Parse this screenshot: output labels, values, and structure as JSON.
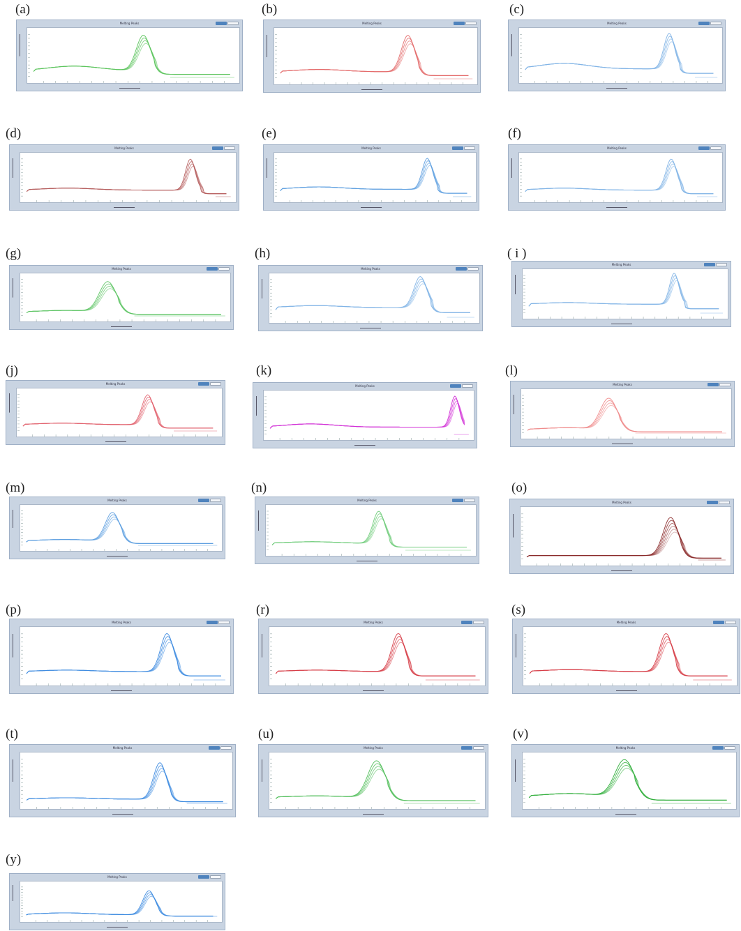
{
  "window_title": "Melting Peaks",
  "chart_data": [
    {
      "label": "(a)",
      "type": "line",
      "color": "#59c35a",
      "peak": 0.55,
      "width": 0.033,
      "baseline": 0.18,
      "left_hump": 0.1,
      "replicates": 4,
      "xlabel": "",
      "ylabel": ""
    },
    {
      "label": "(b)",
      "type": "line",
      "color": "#e36a6a",
      "peak": 0.66,
      "width": 0.032,
      "baseline": 0.18,
      "left_hump": 0.05,
      "replicates": 4,
      "xlabel": "",
      "ylabel": ""
    },
    {
      "label": "(c)",
      "type": "line",
      "color": "#7fb3e6",
      "peak": 0.74,
      "width": 0.026,
      "baseline": 0.22,
      "left_hump": 0.12,
      "replicates": 4,
      "xlabel": "",
      "ylabel": ""
    },
    {
      "label": "(d)",
      "type": "line",
      "color": "#b45a5a",
      "peak": 0.79,
      "width": 0.022,
      "baseline": 0.2,
      "left_hump": 0.05,
      "replicates": 4,
      "xlabel": "",
      "ylabel": ""
    },
    {
      "label": "(e)",
      "type": "line",
      "color": "#5d9fe0",
      "peak": 0.76,
      "width": 0.025,
      "baseline": 0.22,
      "left_hump": 0.06,
      "replicates": 4,
      "xlabel": "",
      "ylabel": ""
    },
    {
      "label": "(f)",
      "type": "line",
      "color": "#7fb3e6",
      "peak": 0.75,
      "width": 0.026,
      "baseline": 0.2,
      "left_hump": 0.05,
      "replicates": 4,
      "xlabel": "",
      "ylabel": ""
    },
    {
      "label": "(g)",
      "type": "line",
      "color": "#5cc463",
      "peak": 0.42,
      "width": 0.04,
      "baseline": 0.14,
      "left_hump": 0.04,
      "replicates": 4,
      "xlabel": "",
      "ylabel": ""
    },
    {
      "label": "(h)",
      "type": "line",
      "color": "#7fb3e6",
      "peak": 0.72,
      "width": 0.03,
      "baseline": 0.28,
      "left_hump": 0.05,
      "replicates": 4,
      "xlabel": "",
      "ylabel": ""
    },
    {
      "label": "( i )",
      "type": "line",
      "color": "#7fb3e6",
      "peak": 0.74,
      "width": 0.022,
      "baseline": 0.26,
      "left_hump": 0.04,
      "replicates": 4,
      "xlabel": "",
      "ylabel": ""
    },
    {
      "label": "(j)",
      "type": "line",
      "color": "#e15f6b",
      "peak": 0.64,
      "width": 0.028,
      "baseline": 0.2,
      "left_hump": 0.04,
      "replicates": 4,
      "xlabel": "",
      "ylabel": ""
    },
    {
      "label": "(k)",
      "type": "line",
      "color": "#d12fd6",
      "peak": 0.91,
      "width": 0.02,
      "baseline": 0.22,
      "left_hump": 0.08,
      "replicates": 4,
      "xlabel": "",
      "ylabel": ""
    },
    {
      "label": "(l)",
      "type": "line",
      "color": "#ef8a8a",
      "peak": 0.42,
      "width": 0.04,
      "baseline": 0.12,
      "left_hump": 0.05,
      "replicates": 4,
      "xlabel": "",
      "ylabel": ""
    },
    {
      "label": "(m)",
      "type": "line",
      "color": "#5d9fe0",
      "peak": 0.46,
      "width": 0.035,
      "baseline": 0.16,
      "left_hump": 0.04,
      "replicates": 4,
      "xlabel": "",
      "ylabel": ""
    },
    {
      "label": "(n)",
      "type": "line",
      "color": "#6fcc7a",
      "peak": 0.54,
      "width": 0.028,
      "baseline": 0.2,
      "left_hump": 0.04,
      "replicates": 4,
      "xlabel": "",
      "ylabel": ""
    },
    {
      "label": "(o)",
      "type": "line",
      "color": "#8b2a2a",
      "peak": 0.72,
      "width": 0.035,
      "baseline": 0.12,
      "left_hump": 0.0,
      "replicates": 6,
      "xlabel": "",
      "ylabel": ""
    },
    {
      "label": "(p)",
      "type": "line",
      "color": "#3d8be0",
      "peak": 0.7,
      "width": 0.03,
      "baseline": 0.2,
      "left_hump": 0.03,
      "replicates": 4,
      "xlabel": "",
      "ylabel": ""
    },
    {
      "label": "(r)",
      "type": "line",
      "color": "#d63b45",
      "peak": 0.6,
      "width": 0.03,
      "baseline": 0.2,
      "left_hump": 0.03,
      "replicates": 4,
      "xlabel": "",
      "ylabel": ""
    },
    {
      "label": "(s)",
      "type": "line",
      "color": "#d63b45",
      "peak": 0.67,
      "width": 0.03,
      "baseline": 0.2,
      "left_hump": 0.04,
      "replicates": 4,
      "xlabel": "",
      "ylabel": ""
    },
    {
      "label": "(t)",
      "type": "line",
      "color": "#3d8be0",
      "peak": 0.66,
      "width": 0.03,
      "baseline": 0.12,
      "left_hump": 0.03,
      "replicates": 4,
      "xlabel": "",
      "ylabel": ""
    },
    {
      "label": "(u)",
      "type": "line",
      "color": "#4fbe58",
      "peak": 0.5,
      "width": 0.04,
      "baseline": 0.16,
      "left_hump": 0.03,
      "replicates": 4,
      "xlabel": "",
      "ylabel": ""
    },
    {
      "label": "(v)",
      "type": "line",
      "color": "#2fae3a",
      "peak": 0.48,
      "width": 0.045,
      "baseline": 0.18,
      "left_hump": 0.06,
      "replicates": 4,
      "xlabel": "",
      "ylabel": ""
    },
    {
      "label": "(y)",
      "type": "line",
      "color": "#3d8be0",
      "peak": 0.64,
      "width": 0.03,
      "baseline": 0.1,
      "left_hump": 0.06,
      "replicates": 4,
      "xlabel": "",
      "ylabel": ""
    }
  ]
}
